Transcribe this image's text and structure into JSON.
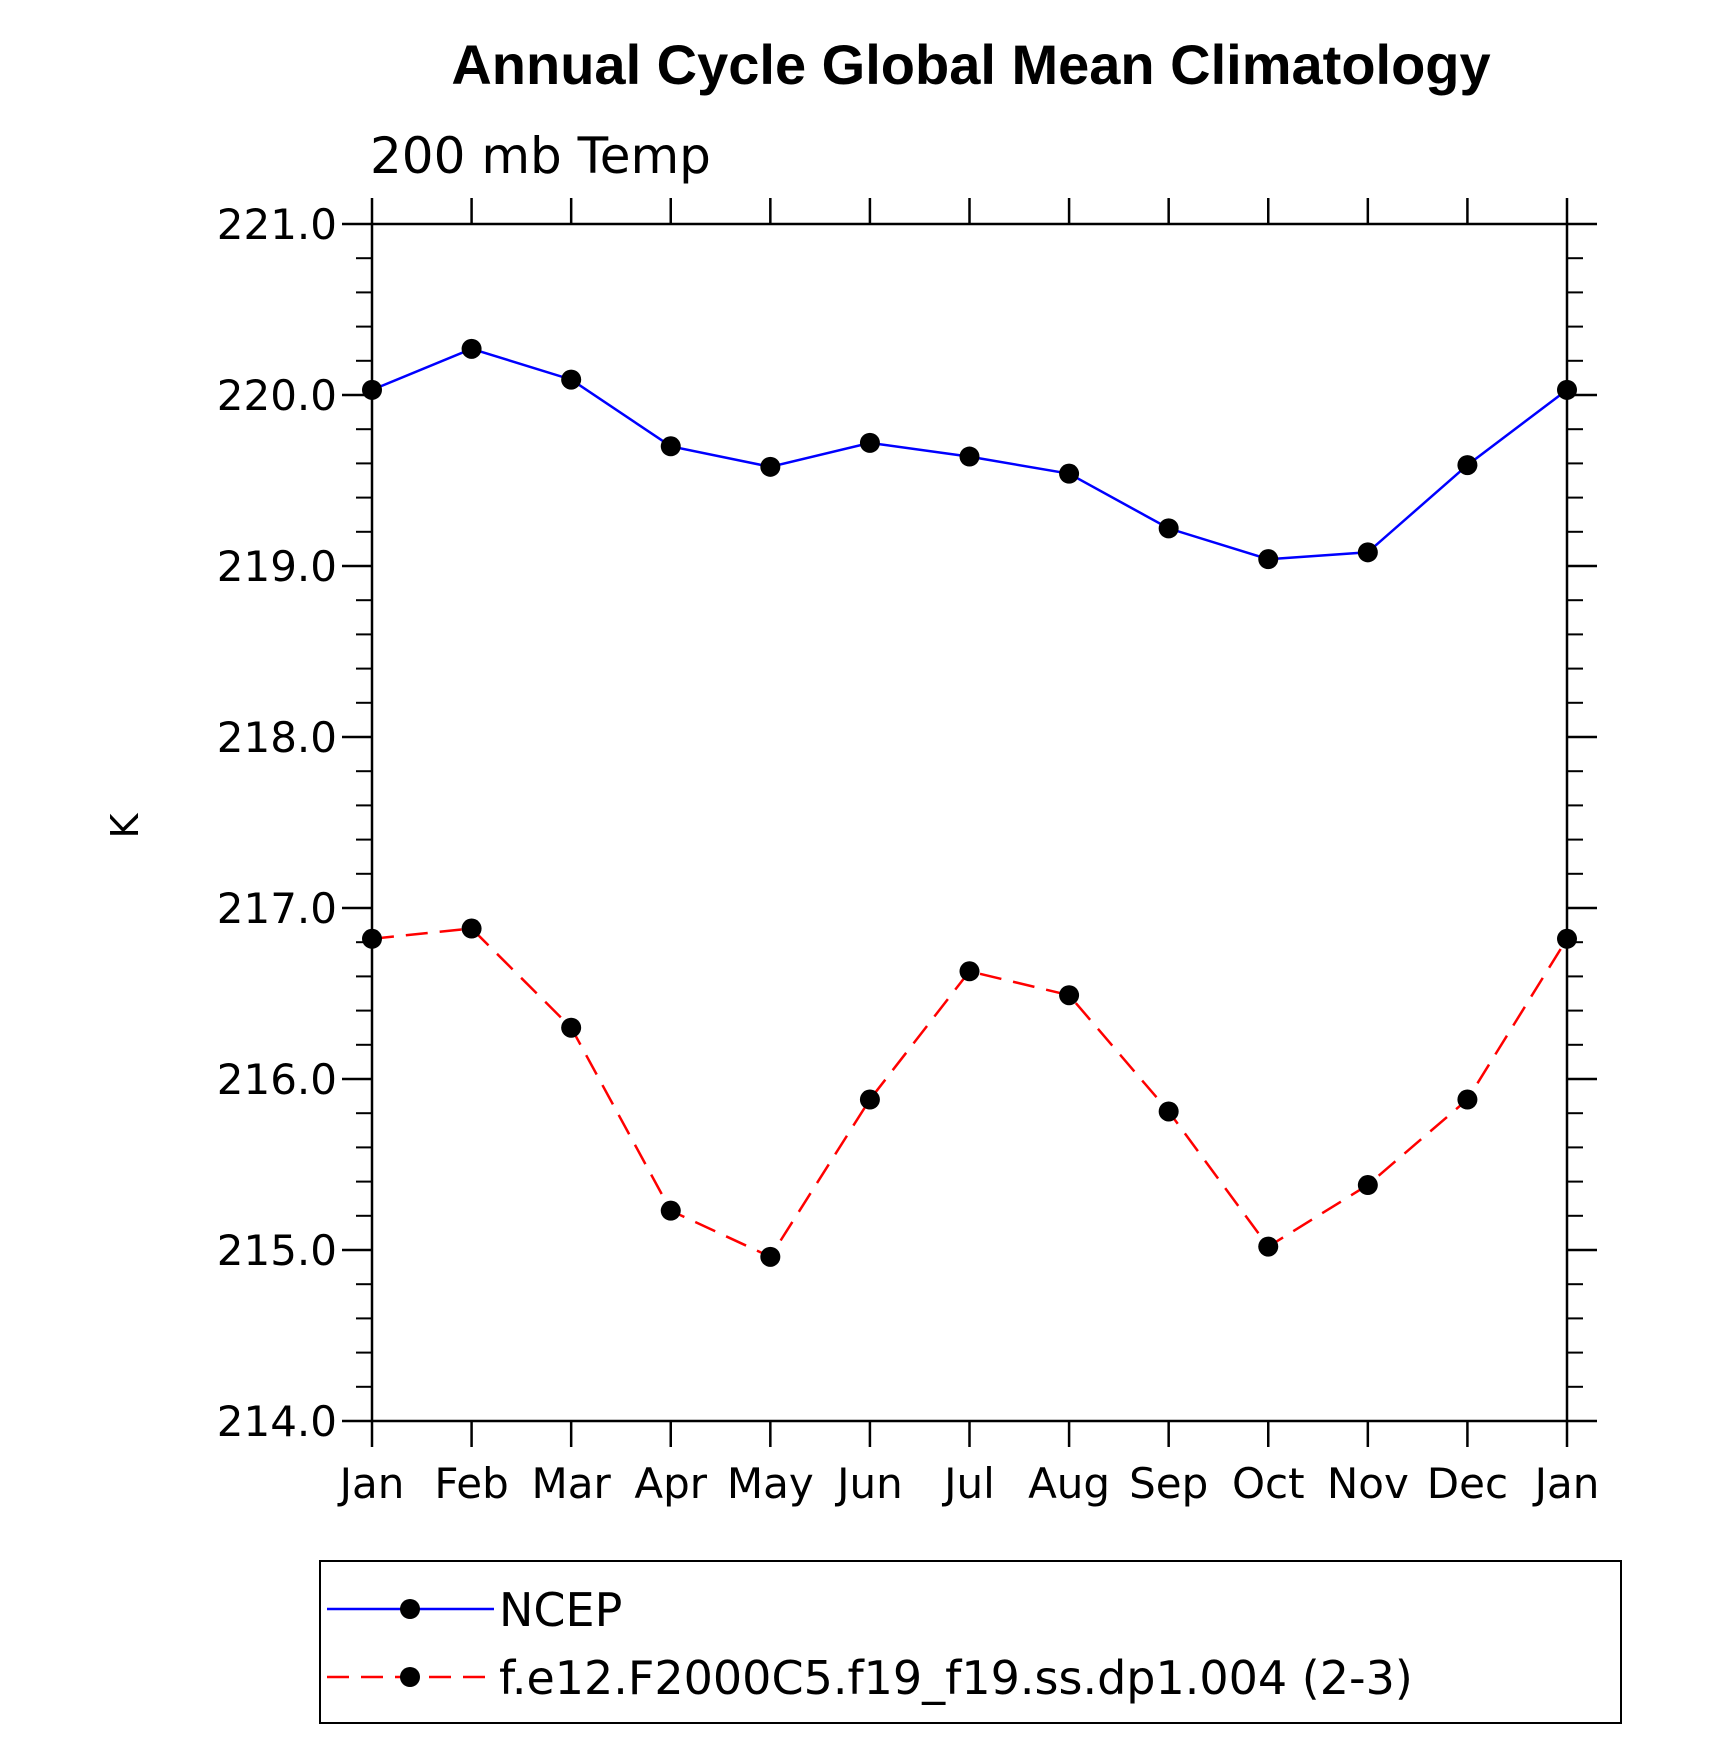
{
  "chart_data": {
    "type": "line",
    "title": "Annual Cycle Global Mean Climatology",
    "subtitle": "200 mb Temp",
    "xlabel": "",
    "ylabel": "K",
    "categories": [
      "Jan",
      "Feb",
      "Mar",
      "Apr",
      "May",
      "Jun",
      "Jul",
      "Aug",
      "Sep",
      "Oct",
      "Nov",
      "Dec",
      "Jan"
    ],
    "ylim": [
      214.0,
      221.0
    ],
    "yticks": [
      "214.0",
      "215.0",
      "216.0",
      "217.0",
      "218.0",
      "219.0",
      "220.0",
      "221.0"
    ],
    "legend_position": "bottom",
    "series": [
      {
        "name": "NCEP",
        "color": "#0000ff",
        "dash": "solid",
        "values": [
          220.03,
          220.27,
          220.09,
          219.7,
          219.58,
          219.72,
          219.64,
          219.54,
          219.22,
          219.04,
          219.08,
          219.59,
          220.03
        ]
      },
      {
        "name": "f.e12.F2000C5.f19_f19.ss.dp1.004 (2-3)",
        "color": "#ff0000",
        "dash": "dashed",
        "values": [
          216.82,
          216.88,
          216.3,
          215.23,
          214.96,
          215.88,
          216.63,
          216.49,
          215.81,
          215.02,
          215.38,
          215.88,
          216.82
        ]
      }
    ]
  }
}
